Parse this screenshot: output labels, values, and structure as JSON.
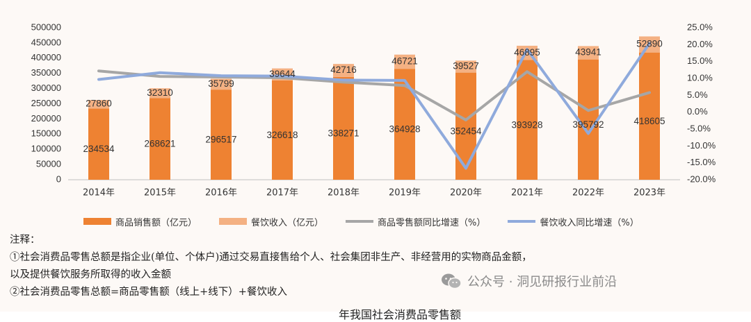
{
  "chart_data": {
    "type": "bar",
    "stacked": true,
    "categories": [
      "2014年",
      "2015年",
      "2016年",
      "2017年",
      "2018年",
      "2019年",
      "2020年",
      "2021年",
      "2022年",
      "2023年"
    ],
    "series": [
      {
        "name": "商品销售额（亿元）",
        "type": "bar",
        "axis": "left",
        "color": "#ee8232",
        "values": [
          234534,
          268621,
          296517,
          326618,
          338271,
          364928,
          352454,
          393928,
          395792,
          418605
        ]
      },
      {
        "name": "餐饮收入（亿元）",
        "type": "bar",
        "axis": "left",
        "color": "#f4b183",
        "values": [
          27860,
          32310,
          35799,
          39644,
          42716,
          46721,
          39527,
          46895,
          43941,
          52890
        ]
      },
      {
        "name": "商品零售额同比增速（%）",
        "type": "line",
        "axis": "right",
        "color": "#a6a6a6",
        "values": [
          12.2,
          10.6,
          10.4,
          10.2,
          8.9,
          7.9,
          -2.3,
          12.0,
          0.5,
          5.8
        ]
      },
      {
        "name": "餐饮收入同比增速（%）",
        "type": "line",
        "axis": "right",
        "color": "#8faadc",
        "values": [
          9.7,
          11.7,
          10.8,
          10.7,
          9.5,
          9.4,
          -16.6,
          18.6,
          -6.3,
          20.4
        ]
      }
    ],
    "left_axis": {
      "ylim": [
        0,
        500000
      ],
      "ticks": [
        "0",
        "50000",
        "100000",
        "150000",
        "200000",
        "250000",
        "300000",
        "350000",
        "400000",
        "450000",
        "500000"
      ]
    },
    "right_axis": {
      "ylim": [
        -20,
        25
      ],
      "ticks": [
        "-20.0%",
        "-15.0%",
        "-10.0%",
        "-5.0%",
        "0.0%",
        "5.0%",
        "10.0%",
        "15.0%",
        "20.0%",
        "25.0%"
      ]
    },
    "grid": false,
    "legend_position": "bottom"
  },
  "notes": {
    "title": "注释：",
    "line1": "①社会消费品零售总额是指企业(单位、个体户)通过交易直接售给个人、社会集团非生产、非经营用的实物商品金额，",
    "line2": "以及提供餐饮服务所取得的收入金额",
    "line3": "②社会消费品零售总额=商品零售额（线上+线下）+餐饮收入"
  },
  "watermark": {
    "text": "公众号 · 洞见研报行业前沿",
    "icon": "wechat-icon"
  },
  "caption": "年我国社会消费品零售额"
}
